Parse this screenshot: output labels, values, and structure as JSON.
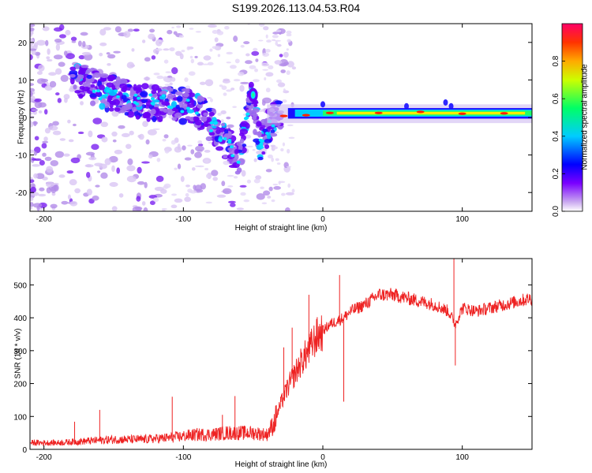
{
  "title": "S199.2026.113.04.53.R04",
  "chart_data": [
    {
      "type": "heatmap",
      "xlabel": "Height of straight line (km)",
      "ylabel": "Frequency (Hz)",
      "xlim": [
        -210,
        150
      ],
      "ylim": [
        -25,
        25
      ],
      "xticks": [
        -200,
        -100,
        0,
        100
      ],
      "yticks": [
        -20,
        -10,
        0,
        10,
        20
      ],
      "colorbar": {
        "label": "Normalized spectral amplitude",
        "range": [
          0,
          1
        ],
        "ticks": [
          "0.0",
          "0.2",
          "0.4",
          "0.6",
          "0.8"
        ],
        "colors": [
          "#ffffff",
          "#7a00ff",
          "#0000ff",
          "#00ccff",
          "#00ff66",
          "#ffee00",
          "#ff3300",
          "#ff0066"
        ]
      },
      "ridge": [
        {
          "x": -172,
          "f": 10
        },
        {
          "x": -160,
          "f": 7
        },
        {
          "x": -145,
          "f": 6
        },
        {
          "x": -130,
          "f": 4
        },
        {
          "x": -115,
          "f": 4
        },
        {
          "x": -100,
          "f": 3
        },
        {
          "x": -90,
          "f": 2
        },
        {
          "x": -80,
          "f": -2
        },
        {
          "x": -70,
          "f": -6
        },
        {
          "x": -60,
          "f": -11
        },
        {
          "x": -52,
          "f": 6
        },
        {
          "x": -45,
          "f": -7
        },
        {
          "x": -35,
          "f": 0
        },
        {
          "x": -20,
          "f": 1
        },
        {
          "x": 0,
          "f": 2
        },
        {
          "x": 50,
          "f": 1
        },
        {
          "x": 90,
          "f": 2
        },
        {
          "x": 150,
          "f": 1
        }
      ]
    },
    {
      "type": "line",
      "xlabel": "Height of straight line (km)",
      "ylabel": "SNR (10 * v/v)",
      "xlim": [
        -210,
        150
      ],
      "ylim": [
        0,
        580
      ],
      "xticks": [
        -200,
        -100,
        0,
        100
      ],
      "yticks": [
        0,
        100,
        200,
        300,
        400,
        500
      ],
      "color": "#ee2222",
      "series": [
        {
          "name": "SNR",
          "x": [
            -210,
            -190,
            -170,
            -150,
            -130,
            -110,
            -100,
            -90,
            -80,
            -70,
            -60,
            -50,
            -40,
            -35,
            -30,
            -25,
            -20,
            -15,
            -10,
            -5,
            0,
            5,
            10,
            15,
            20,
            30,
            40,
            50,
            60,
            70,
            80,
            90,
            95,
            100,
            110,
            120,
            130,
            140,
            150
          ],
          "y": [
            20,
            20,
            25,
            30,
            30,
            35,
            40,
            45,
            45,
            50,
            50,
            50,
            45,
            80,
            140,
            190,
            230,
            270,
            300,
            340,
            360,
            380,
            390,
            400,
            420,
            440,
            470,
            470,
            460,
            450,
            440,
            420,
            380,
            430,
            420,
            430,
            440,
            450,
            460
          ]
        }
      ],
      "peaks": [
        {
          "x": -178,
          "y": 84
        },
        {
          "x": -160,
          "y": 120
        },
        {
          "x": -108,
          "y": 160
        },
        {
          "x": -72,
          "y": 105
        },
        {
          "x": -63,
          "y": 162
        },
        {
          "x": -28,
          "y": 310
        },
        {
          "x": -22,
          "y": 370
        },
        {
          "x": -10,
          "y": 470
        },
        {
          "x": 12,
          "y": 530
        },
        {
          "x": 15,
          "y": 145
        },
        {
          "x": 94,
          "y": 580
        },
        {
          "x": 95,
          "y": 255
        }
      ]
    }
  ]
}
